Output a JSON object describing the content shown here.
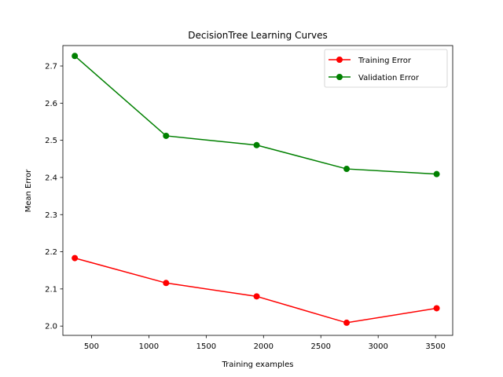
{
  "chart_data": {
    "type": "line",
    "title": "DecisionTree Learning Curves",
    "xlabel": "Training examples",
    "ylabel": "Mean Error",
    "xlim": [
      250,
      3650
    ],
    "ylim": [
      1.975,
      2.755
    ],
    "xticks": [
      500,
      1000,
      1500,
      2000,
      2500,
      3000,
      3500
    ],
    "yticks": [
      2.0,
      2.1,
      2.2,
      2.3,
      2.4,
      2.5,
      2.6,
      2.7
    ],
    "grid": false,
    "legend_position": "top-right",
    "x": [
      354,
      1150,
      1940,
      2725,
      3510
    ],
    "series": [
      {
        "name": "Training Error",
        "color": "#ff0000",
        "values": [
          2.183,
          2.116,
          2.08,
          2.009,
          2.048
        ]
      },
      {
        "name": "Validation Error",
        "color": "#008000",
        "values": [
          2.727,
          2.512,
          2.487,
          2.423,
          2.409
        ]
      }
    ]
  }
}
